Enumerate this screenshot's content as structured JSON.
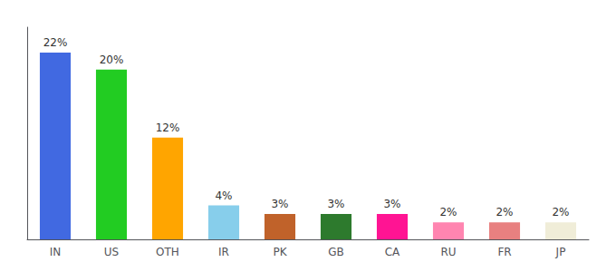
{
  "chart_data": {
    "type": "bar",
    "categories": [
      "IN",
      "US",
      "OTH",
      "IR",
      "PK",
      "GB",
      "CA",
      "RU",
      "FR",
      "JP"
    ],
    "values": [
      22,
      20,
      12,
      4,
      3,
      3,
      3,
      2,
      2,
      2
    ],
    "value_labels": [
      "22%",
      "20%",
      "12%",
      "4%",
      "3%",
      "3%",
      "3%",
      "2%",
      "2%",
      "2%"
    ],
    "colors": [
      "#4169e1",
      "#22cc22",
      "#ffa500",
      "#87ceeb",
      "#c0622a",
      "#2d7a2d",
      "#ff1493",
      "#ff85b0",
      "#e88080",
      "#f0edd8"
    ],
    "ylim": [
      0,
      25
    ],
    "data_labels": true,
    "tick_labels": "x",
    "grid": false
  }
}
